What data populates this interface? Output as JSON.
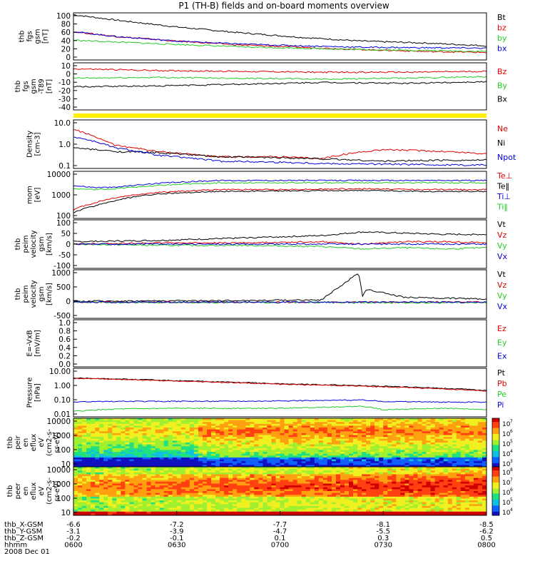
{
  "title": "P1 (TH-B) fields and on-board moments overview",
  "colors": {
    "black": "#000000",
    "red": "#e00000",
    "green": "#22cc22",
    "blue": "#0000dd",
    "yellow": "#ffee00"
  },
  "chart_data": [
    {
      "type": "line",
      "ylabel": [
        "thb",
        "fgs",
        "gsm",
        "[nT]"
      ],
      "ylim": [
        0,
        100
      ],
      "yticks": [
        "100",
        "80",
        "60",
        "40",
        "20",
        "0"
      ],
      "legend": [
        "Bt",
        "bz",
        "by",
        "bx"
      ],
      "series": [
        {
          "name": "Bt",
          "color": "black",
          "x": [
            0,
            0.1,
            0.25,
            0.4,
            0.55,
            0.7,
            0.85,
            1.0
          ],
          "values": [
            96,
            85,
            70,
            58,
            48,
            40,
            36,
            30
          ]
        },
        {
          "name": "bz",
          "color": "red",
          "x": [
            0,
            0.1,
            0.25,
            0.4,
            0.55,
            0.7,
            0.85,
            1.0
          ],
          "values": [
            60,
            50,
            40,
            32,
            27,
            22,
            18,
            16
          ]
        },
        {
          "name": "by",
          "color": "green",
          "x": [
            0,
            0.1,
            0.25,
            0.4,
            0.55,
            0.7,
            0.85,
            1.0
          ],
          "values": [
            42,
            38,
            33,
            28,
            25,
            22,
            20,
            18
          ]
        },
        {
          "name": "bx",
          "color": "blue",
          "x": [
            0,
            0.1,
            0.25,
            0.4,
            0.55,
            0.7,
            0.85,
            1.0
          ],
          "values": [
            60,
            50,
            40,
            34,
            30,
            27,
            26,
            25
          ]
        }
      ]
    },
    {
      "type": "line",
      "ylabel": [
        "thb",
        "fgs",
        "gsm",
        "-T89",
        "[nT]"
      ],
      "ylim": [
        -45,
        10
      ],
      "yticks": [
        "10",
        "0",
        "-10",
        "-20",
        "-30",
        "-40"
      ],
      "legend": [
        "Bz",
        "By",
        "Bx"
      ],
      "series": [
        {
          "name": "Bz",
          "color": "red",
          "x": [
            0,
            0.2,
            0.4,
            0.6,
            0.8,
            1.0
          ],
          "values": [
            3,
            1,
            0,
            -1,
            -1,
            0
          ]
        },
        {
          "name": "By",
          "color": "green",
          "x": [
            0,
            0.2,
            0.4,
            0.6,
            0.8,
            1.0
          ],
          "values": [
            -8,
            -7,
            -8,
            -9,
            -8,
            -6
          ]
        },
        {
          "name": "Bx",
          "color": "black",
          "x": [
            0,
            0.2,
            0.4,
            0.6,
            0.8,
            1.0
          ],
          "values": [
            -18,
            -17,
            -15,
            -13,
            -14,
            -12
          ]
        }
      ]
    },
    {
      "type": "line",
      "ylabel": [
        "Density",
        "[cm-3]"
      ],
      "scale": "log",
      "ylim": [
        0.1,
        10
      ],
      "yticks": [
        "10.0",
        "1.0",
        "0.1"
      ],
      "legend": [
        "Ne",
        "Ni",
        "Npot"
      ],
      "series": [
        {
          "name": "Ne",
          "color": "red",
          "x": [
            0,
            0.05,
            0.1,
            0.2,
            0.35,
            0.5,
            0.6,
            0.75,
            0.9,
            1.0
          ],
          "values": [
            4,
            2,
            0.9,
            0.5,
            0.3,
            0.3,
            0.25,
            0.6,
            0.5,
            0.4
          ]
        },
        {
          "name": "Ni",
          "color": "black",
          "x": [
            0,
            0.05,
            0.1,
            0.2,
            0.35,
            0.5,
            0.6,
            0.75,
            0.9,
            1.0
          ],
          "values": [
            0.7,
            0.6,
            0.5,
            0.45,
            0.3,
            0.28,
            0.25,
            0.2,
            0.22,
            0.22
          ]
        },
        {
          "name": "Npot",
          "color": "blue",
          "x": [
            0,
            0.05,
            0.1,
            0.2,
            0.35,
            0.5,
            0.6,
            0.75,
            0.9,
            1.0
          ],
          "values": [
            2,
            1.3,
            0.7,
            0.35,
            0.2,
            0.18,
            0.16,
            0.15,
            0.14,
            0.14
          ]
        }
      ]
    },
    {
      "type": "line",
      "ylabel": [
        "mom",
        "[eV]"
      ],
      "scale": "log",
      "ylim": [
        20,
        10000
      ],
      "yticks": [
        "10000",
        "1000",
        "100"
      ],
      "legend": [
        "Te⊥",
        "Te‖",
        "Ti⊥",
        "Ti‖"
      ],
      "series": [
        {
          "name": "Te⊥",
          "color": "red",
          "x": [
            0,
            0.05,
            0.1,
            0.2,
            0.35,
            0.5,
            0.7,
            0.85,
            1.0
          ],
          "values": [
            60,
            150,
            300,
            600,
            900,
            900,
            1000,
            900,
            900
          ]
        },
        {
          "name": "Te‖",
          "color": "black",
          "x": [
            0,
            0.05,
            0.1,
            0.2,
            0.35,
            0.5,
            0.7,
            0.85,
            1.0
          ],
          "values": [
            40,
            100,
            200,
            500,
            700,
            750,
            800,
            700,
            700
          ]
        },
        {
          "name": "Ti⊥",
          "color": "blue",
          "x": [
            0,
            0.05,
            0.1,
            0.2,
            0.35,
            0.5,
            0.7,
            0.85,
            1.0
          ],
          "values": [
            1500,
            1200,
            1200,
            2000,
            3000,
            3000,
            3000,
            3000,
            3000
          ]
        },
        {
          "name": "Ti‖",
          "color": "green",
          "x": [
            0,
            0.05,
            0.1,
            0.2,
            0.35,
            0.5,
            0.7,
            0.85,
            1.0
          ],
          "values": [
            1000,
            900,
            1000,
            1500,
            2200,
            2200,
            2200,
            2200,
            2200
          ]
        }
      ]
    },
    {
      "type": "line",
      "ylabel": [
        "thb",
        "peim",
        "velocity",
        "gsm",
        "[km/s]"
      ],
      "ylim": [
        -100,
        100
      ],
      "yticks": [
        "100",
        "50",
        "0",
        "-50",
        "-100"
      ],
      "legend": [
        "Vt",
        "Vz",
        "Vy",
        "Vx"
      ],
      "series": [
        {
          "name": "Vt",
          "color": "black",
          "x": [
            0,
            0.2,
            0.4,
            0.6,
            0.7,
            0.8,
            0.9,
            1.0
          ],
          "values": [
            10,
            15,
            25,
            35,
            50,
            45,
            40,
            40
          ]
        },
        {
          "name": "Vz",
          "color": "red",
          "x": [
            0,
            0.2,
            0.4,
            0.6,
            0.7,
            0.8,
            0.9,
            1.0
          ],
          "values": [
            0,
            5,
            5,
            10,
            0,
            10,
            10,
            5
          ]
        },
        {
          "name": "Vy",
          "color": "green",
          "x": [
            0,
            0.2,
            0.4,
            0.6,
            0.7,
            0.8,
            0.9,
            1.0
          ],
          "values": [
            0,
            -5,
            -5,
            -10,
            -20,
            -15,
            -20,
            -15
          ]
        },
        {
          "name": "Vx",
          "color": "blue",
          "x": [
            0,
            0.2,
            0.4,
            0.6,
            0.7,
            0.8,
            0.9,
            1.0
          ],
          "values": [
            0,
            0,
            0,
            0,
            0,
            0,
            0,
            0
          ]
        }
      ]
    },
    {
      "type": "line",
      "ylabel": [
        "thb",
        "peim",
        "velocity",
        "gsm",
        "[km/s]"
      ],
      "ylim": [
        -500,
        1000
      ],
      "yticks": [
        "1000",
        "500",
        "0",
        "-500"
      ],
      "legend": [
        "Vt",
        "Vz",
        "Vy",
        "Vx"
      ],
      "series": [
        {
          "name": "Vt",
          "color": "black",
          "x": [
            0,
            0.2,
            0.4,
            0.6,
            0.69,
            0.7,
            0.71,
            0.8,
            1.0
          ],
          "values": [
            30,
            40,
            50,
            70,
            900,
            200,
            400,
            150,
            100
          ]
        },
        {
          "name": "Vz",
          "color": "red",
          "x": [
            0,
            0.2,
            0.4,
            0.6,
            0.8,
            1.0
          ],
          "values": [
            0,
            0,
            0,
            0,
            0,
            0
          ]
        },
        {
          "name": "Vy",
          "color": "green",
          "x": [
            0,
            0.2,
            0.4,
            0.6,
            0.8,
            1.0
          ],
          "values": [
            0,
            -10,
            -10,
            -10,
            -20,
            -10
          ]
        },
        {
          "name": "Vx",
          "color": "blue",
          "x": [
            0,
            0.2,
            0.4,
            0.6,
            0.8,
            1.0
          ],
          "values": [
            0,
            0,
            0,
            0,
            0,
            0
          ]
        }
      ]
    },
    {
      "type": "line",
      "ylabel": [
        "E=-VxB",
        "[mV/m]"
      ],
      "ylim": [
        0,
        1
      ],
      "yticks": [
        "1.0",
        "0.8",
        "0.6",
        "0.4",
        "0.2",
        "0.0"
      ],
      "legend": [
        "Ez",
        "Ey",
        "Ex"
      ],
      "series": []
    },
    {
      "type": "line",
      "ylabel": [
        "Pressure",
        "[nPa]"
      ],
      "scale": "log",
      "ylim": [
        0.006,
        20
      ],
      "yticks": [
        "10.00",
        "1.00",
        "0.10",
        "0.01"
      ],
      "legend": [
        "Pt",
        "Pb",
        "Pe",
        "Pi"
      ],
      "series": [
        {
          "name": "Pt",
          "color": "black",
          "x": [
            0,
            0.25,
            0.5,
            0.75,
            1.0
          ],
          "values": [
            4,
            2.5,
            1.5,
            1.0,
            0.5
          ]
        },
        {
          "name": "Pb",
          "color": "red",
          "x": [
            0,
            0.25,
            0.5,
            0.75,
            1.0
          ],
          "values": [
            3.8,
            2.3,
            1.4,
            0.9,
            0.45
          ]
        },
        {
          "name": "Pe",
          "color": "green",
          "x": [
            0,
            0.1,
            0.25,
            0.5,
            0.7,
            0.75,
            0.9,
            1.0
          ],
          "values": [
            0.015,
            0.022,
            0.025,
            0.025,
            0.035,
            0.02,
            0.025,
            0.02
          ]
        },
        {
          "name": "Pi",
          "color": "blue",
          "x": [
            0,
            0.1,
            0.25,
            0.5,
            0.7,
            0.75,
            0.9,
            1.0
          ],
          "values": [
            0.07,
            0.08,
            0.08,
            0.085,
            0.1,
            0.08,
            0.07,
            0.07
          ]
        }
      ]
    },
    {
      "type": "heatmap",
      "ylabel": [
        "thb",
        "peir",
        "en",
        "eflux",
        "eV",
        "(cm2-s-",
        "sr-eV)"
      ],
      "yticks": [
        "10000",
        "1000",
        "100",
        "10"
      ],
      "colorbar_ticks": [
        "10",
        "10",
        "10",
        "10",
        "10"
      ],
      "colorbar_exponents": [
        "7",
        "6",
        "5",
        "4",
        "3"
      ]
    },
    {
      "type": "heatmap",
      "ylabel": [
        "thb",
        "peer",
        "en",
        "eflux",
        "eV",
        "(cm2-s-",
        "sr-eV)"
      ],
      "yticks": [
        "10000",
        "1000",
        "100",
        "10"
      ],
      "colorbar_ticks": [
        "10",
        "10",
        "10",
        "10",
        "10"
      ],
      "colorbar_exponents": [
        "8",
        "7",
        "6",
        "5",
        "4"
      ]
    }
  ],
  "xaxis": {
    "ticks": [
      "0600",
      "0630",
      "0700",
      "0730",
      "0800"
    ],
    "rows": [
      {
        "label": "thb_X-GSM",
        "values": [
          "-6.6",
          "-7.2",
          "-7.7",
          "-8.1",
          "-8.5"
        ]
      },
      {
        "label": "thb_Y-GSM",
        "values": [
          "-3.1",
          "-3.9",
          "-4.7",
          "-5.5",
          "-6.2"
        ]
      },
      {
        "label": "thb_Z-GSM",
        "values": [
          "-0.2",
          "-0.1",
          "0.1",
          "0.3",
          "0.5"
        ]
      },
      {
        "label": "hhmm",
        "values": [
          "0600",
          "0630",
          "0700",
          "0730",
          "0800"
        ]
      }
    ],
    "date": "2008 Dec 01"
  }
}
